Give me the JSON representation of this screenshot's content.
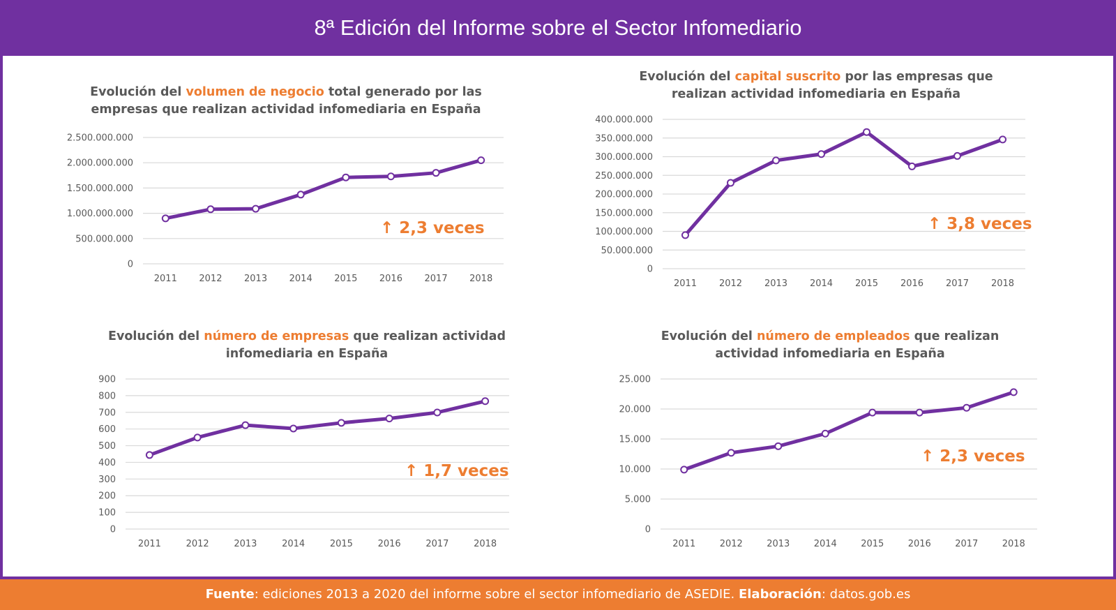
{
  "header": {
    "title": "8ª Edición del Informe sobre el Sector Infomediario"
  },
  "footer": {
    "source_label": "Fuente",
    "source_text": ": ediciones 2013 a 2020 del informe sobre el sector infomediario de ASEDIE. ",
    "credit_label": "Elaboración",
    "credit_text": ": datos.gob.es"
  },
  "colors": {
    "line": "#7030a0",
    "accent": "#ed7d31",
    "header_bg": "#7030a0",
    "footer_bg": "#ed7d31",
    "grid": "#d9d9d9",
    "axis_text": "#595959"
  },
  "chart_data": [
    {
      "type": "line",
      "title": {
        "before": "Evolución del ",
        "highlight": "volumen de negocio",
        "after": " total generado por las",
        "line2": "empresas que realizan actividad infomediaria en España"
      },
      "x": [
        "2011",
        "2012",
        "2013",
        "2014",
        "2015",
        "2016",
        "2017",
        "2018"
      ],
      "series": [
        {
          "values": [
            900000000,
            1080000000,
            1090000000,
            1370000000,
            1710000000,
            1730000000,
            1800000000,
            2050000000
          ]
        }
      ],
      "ylim": [
        0,
        2500000000
      ],
      "yticks": [
        "0",
        "500.000.000",
        "1.000.000.000",
        "1.500.000.000",
        "2.000.000.000",
        "2.500.000.000"
      ],
      "annotation": "↑ 2,3 veces",
      "grid": true
    },
    {
      "type": "line",
      "title": {
        "before": "Evolución del ",
        "highlight": "capital suscrito",
        "after": " por las empresas que",
        "line2": "realizan actividad infomediaria en España"
      },
      "x": [
        "2011",
        "2012",
        "2013",
        "2014",
        "2015",
        "2016",
        "2017",
        "2018"
      ],
      "series": [
        {
          "values": [
            90000000,
            230000000,
            290000000,
            307000000,
            366000000,
            274000000,
            302000000,
            346000000
          ]
        }
      ],
      "ylim": [
        0,
        400000000
      ],
      "yticks": [
        "0",
        "50.000.000",
        "100.000.000",
        "150.000.000",
        "200.000.000",
        "250.000.000",
        "300.000.000",
        "350.000.000",
        "400.000.000"
      ],
      "annotation": "↑ 3,8 veces",
      "grid": true
    },
    {
      "type": "line",
      "title": {
        "before": "Evolución del ",
        "highlight": "número de empresas",
        "after": " que realizan actividad",
        "line2": "infomediaria en España"
      },
      "x": [
        "2011",
        "2012",
        "2013",
        "2014",
        "2015",
        "2016",
        "2017",
        "2018"
      ],
      "series": [
        {
          "values": [
            444,
            549,
            623,
            603,
            637,
            663,
            699,
            767
          ]
        }
      ],
      "ylim": [
        0,
        900
      ],
      "yticks": [
        "0",
        "100",
        "200",
        "300",
        "400",
        "500",
        "600",
        "700",
        "800",
        "900"
      ],
      "annotation": "↑ 1,7 veces",
      "grid": true
    },
    {
      "type": "line",
      "title": {
        "before": "Evolución del ",
        "highlight": "número de empleados",
        "after": " que realizan",
        "line2": "actividad infomediaria en España"
      },
      "x": [
        "2011",
        "2012",
        "2013",
        "2014",
        "2015",
        "2016",
        "2017",
        "2018"
      ],
      "series": [
        {
          "values": [
            9900,
            12700,
            13800,
            15900,
            19400,
            19400,
            20200,
            22800
          ]
        }
      ],
      "ylim": [
        0,
        25000
      ],
      "yticks": [
        "0",
        "5.000",
        "10.000",
        "15.000",
        "20.000",
        "25.000"
      ],
      "annotation": "↑ 2,3 veces",
      "grid": true
    }
  ]
}
